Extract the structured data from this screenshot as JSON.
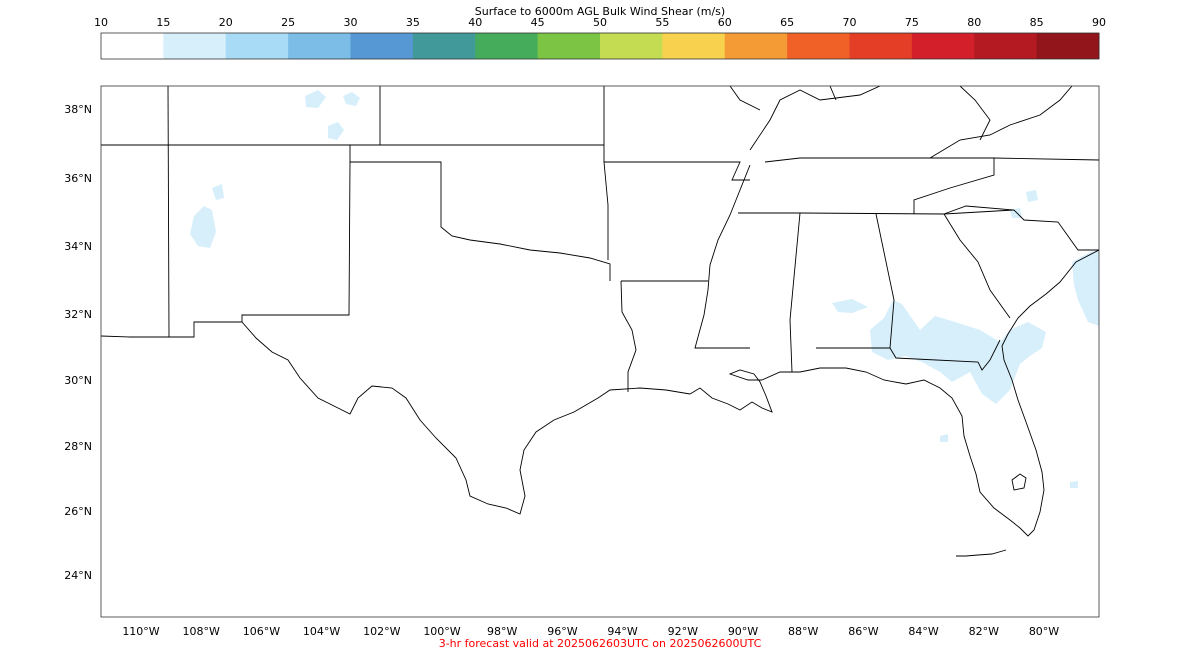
{
  "colorbar": {
    "title": "Surface to 6000m AGL Bulk Wind Shear (m/s)",
    "ticks": [
      "10",
      "15",
      "20",
      "25",
      "30",
      "35",
      "40",
      "45",
      "50",
      "55",
      "60",
      "65",
      "70",
      "75",
      "80",
      "85",
      "90"
    ],
    "colors": [
      "#ffffff",
      "#d6effb",
      "#a8dcf6",
      "#7bbde6",
      "#5598d3",
      "#419a99",
      "#45ac5c",
      "#7cc443",
      "#c4dc52",
      "#f8d24e",
      "#f59b36",
      "#f06128",
      "#e53e27",
      "#d21f29",
      "#b31a21",
      "#91151a"
    ]
  },
  "map": {
    "lat_labels": [
      "38°N",
      "36°N",
      "34°N",
      "32°N",
      "30°N",
      "28°N",
      "26°N",
      "24°N"
    ],
    "lon_labels": [
      "110°W",
      "108°W",
      "106°W",
      "104°W",
      "102°W",
      "100°W",
      "98°W",
      "96°W",
      "94°W",
      "92°W",
      "90°W",
      "88°W",
      "86°W",
      "84°W",
      "82°W",
      "80°W"
    ],
    "shear_color": "#d6effb"
  },
  "footer": {
    "text": "3-hr forecast valid at 2025062603UTC on 2025062600UTC",
    "color": "#ff0000"
  }
}
